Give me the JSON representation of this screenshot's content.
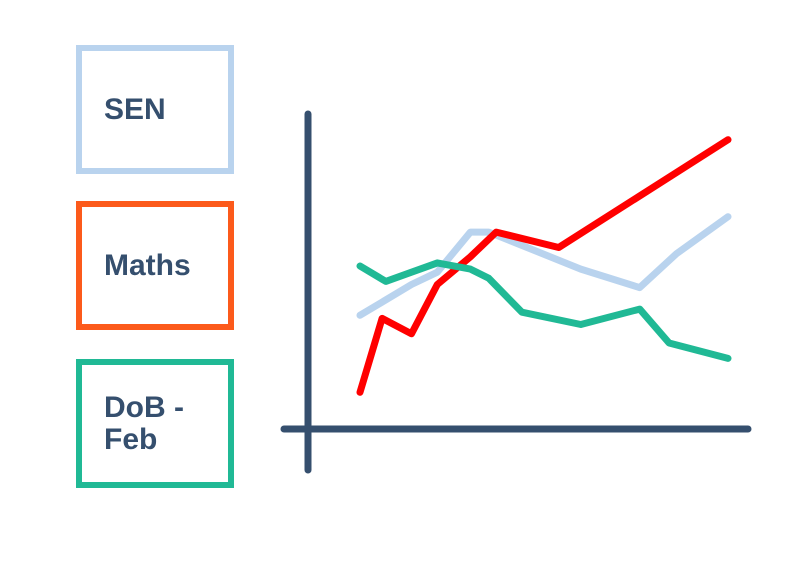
{
  "legend": {
    "items": [
      {
        "label": "SEN",
        "color": "#b9d3ee"
      },
      {
        "label": "Maths",
        "color": "#fc5a1b"
      },
      {
        "label": "DoB -\nFeb",
        "color": "#20b995"
      }
    ]
  },
  "chart_data": {
    "type": "line",
    "x": [
      0,
      1,
      2,
      3,
      4,
      5,
      6,
      7,
      8,
      9,
      10
    ],
    "xlim": [
      0,
      10
    ],
    "ylim": [
      0,
      100
    ],
    "axis_color": "#354f6e",
    "grid": false,
    "series": [
      {
        "name": "SEN",
        "color": "#b9d3ee",
        "points": [
          [
            0,
            34
          ],
          [
            1.4,
            44
          ],
          [
            2.1,
            48
          ],
          [
            3.0,
            61
          ],
          [
            3.5,
            61
          ],
          [
            6.0,
            49
          ],
          [
            7.6,
            43
          ],
          [
            8.6,
            54
          ],
          [
            10,
            66
          ]
        ]
      },
      {
        "name": "Maths",
        "color": "#ff0000",
        "points": [
          [
            0,
            9
          ],
          [
            0.6,
            33
          ],
          [
            1.4,
            28
          ],
          [
            2.1,
            44
          ],
          [
            3.0,
            53
          ],
          [
            3.7,
            61
          ],
          [
            5.4,
            56
          ],
          [
            10,
            91
          ]
        ]
      },
      {
        "name": "DoB - Feb",
        "color": "#20b995",
        "points": [
          [
            0,
            50
          ],
          [
            0.7,
            45
          ],
          [
            1.4,
            48
          ],
          [
            2.1,
            51
          ],
          [
            3.0,
            49
          ],
          [
            3.5,
            46
          ],
          [
            4.4,
            35
          ],
          [
            6.0,
            31
          ],
          [
            7.6,
            36
          ],
          [
            8.4,
            25
          ],
          [
            10,
            20
          ]
        ]
      }
    ]
  }
}
